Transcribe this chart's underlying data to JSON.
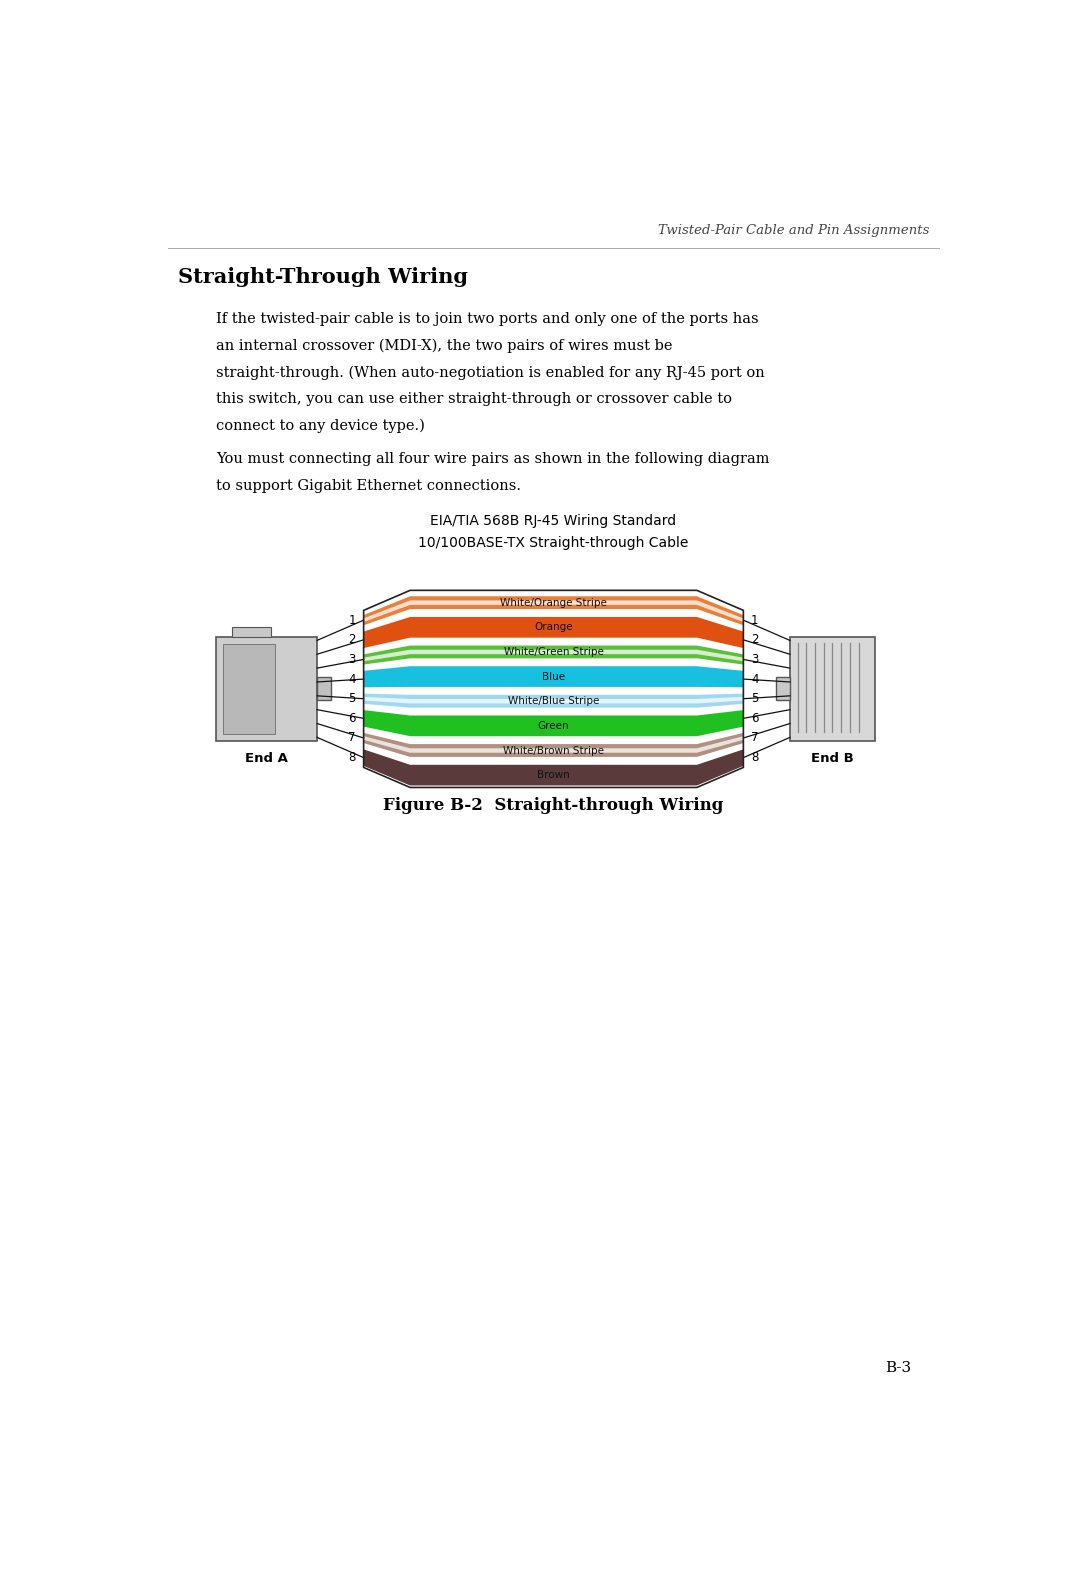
{
  "header": "Twisted-Pair Cable and Pin Assignments",
  "section_title": "Straight-Through Wiring",
  "body1_lines": [
    "If the twisted-pair cable is to join two ports and only one of the ports has",
    "an internal crossover (MDI-X), the two pairs of wires must be",
    "straight-through. (When auto-negotiation is enabled for any RJ-45 port on",
    "this switch, you can use either straight-through or crossover cable to",
    "connect to any device type.)"
  ],
  "body2_lines": [
    "You must connecting all four wire pairs as shown in the following diagram",
    "to support Gigabit Ethernet connections."
  ],
  "diagram_title1": "EIA/TIA 568B RJ-45 Wiring Standard",
  "diagram_title2": "10/100BASE-TX Straight-through Cable",
  "figure_caption": "Figure B-2  Straight-through Wiring",
  "page_number": "B-3",
  "wires": [
    {
      "pin": 1,
      "label": "White/Orange Stripe",
      "main_color": "#E8803A",
      "stripe_color": "#FFFFFF",
      "is_stripe": true,
      "thick": false
    },
    {
      "pin": 2,
      "label": "Orange",
      "main_color": "#E05010",
      "stripe_color": null,
      "is_stripe": false,
      "thick": true
    },
    {
      "pin": 3,
      "label": "White/Green Stripe",
      "main_color": "#5BBF3A",
      "stripe_color": "#FFFFFF",
      "is_stripe": true,
      "thick": false
    },
    {
      "pin": 4,
      "label": "Blue",
      "main_color": "#18C0E0",
      "stripe_color": null,
      "is_stripe": false,
      "thick": true
    },
    {
      "pin": 5,
      "label": "White/Blue Stripe",
      "main_color": "#A0D8F0",
      "stripe_color": "#FFFFFF",
      "is_stripe": true,
      "thick": false
    },
    {
      "pin": 6,
      "label": "Green",
      "main_color": "#20C020",
      "stripe_color": null,
      "is_stripe": false,
      "thick": true
    },
    {
      "pin": 7,
      "label": "White/Brown Stripe",
      "main_color": "#B09080",
      "stripe_color": "#FFFFFF",
      "is_stripe": true,
      "thick": false
    },
    {
      "pin": 8,
      "label": "Brown",
      "main_color": "#5A3A3A",
      "stripe_color": null,
      "is_stripe": false,
      "thick": true
    }
  ],
  "bg_color": "#ffffff",
  "text_color": "#000000"
}
